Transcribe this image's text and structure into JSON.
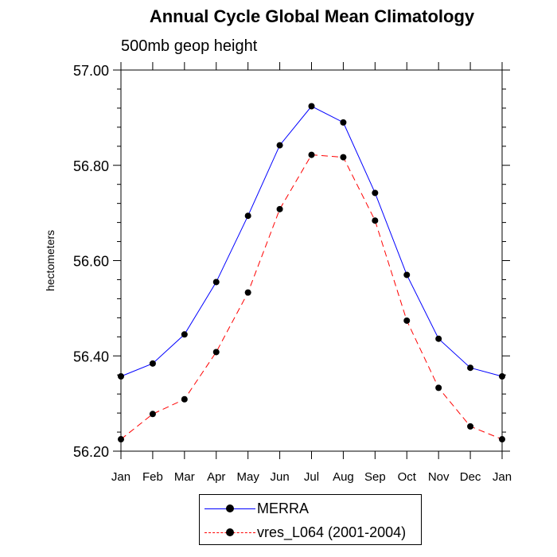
{
  "chart_data": {
    "type": "line",
    "title": "Annual Cycle Global Mean Climatology",
    "subtitle": "500mb geop height",
    "ylabel": "hectometers",
    "xlabel": "",
    "categories": [
      "Jan",
      "Feb",
      "Mar",
      "Apr",
      "May",
      "Jun",
      "Jul",
      "Aug",
      "Sep",
      "Oct",
      "Nov",
      "Dec",
      "Jan"
    ],
    "ylim": [
      56.2,
      57.0
    ],
    "yticks": [
      "56.20",
      "56.40",
      "56.60",
      "56.80",
      "57.00"
    ],
    "series": [
      {
        "name": "MERRA",
        "color": "#0000ff",
        "dash": "solid",
        "values": [
          56.357,
          56.384,
          56.445,
          56.555,
          56.694,
          56.842,
          56.924,
          56.89,
          56.742,
          56.57,
          56.436,
          56.375,
          56.357
        ]
      },
      {
        "name": "vres_L064 (2001-2004)",
        "color": "#ff0000",
        "dash": "dashed",
        "values": [
          56.225,
          56.278,
          56.309,
          56.408,
          56.533,
          56.708,
          56.822,
          56.817,
          56.684,
          56.474,
          56.333,
          56.252,
          56.225
        ]
      }
    ],
    "legend_position": "bottom"
  }
}
